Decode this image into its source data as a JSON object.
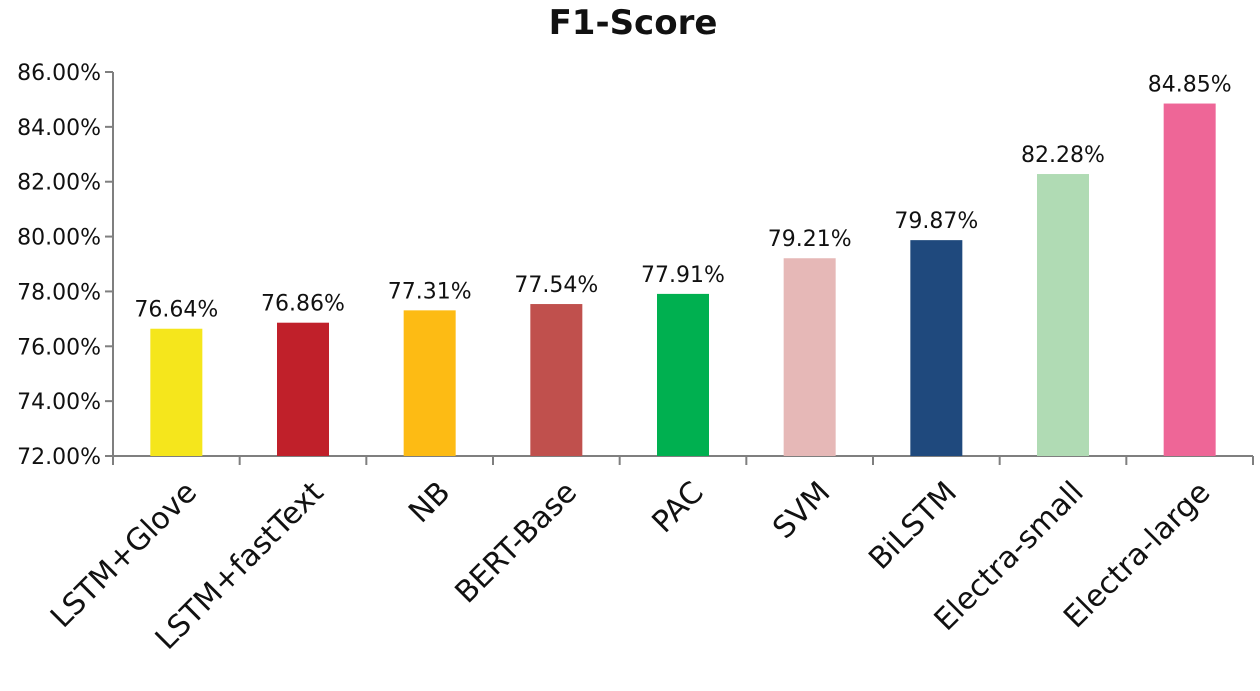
{
  "chart_data": {
    "type": "bar",
    "title": "F1-Score",
    "xlabel": "",
    "ylabel": "",
    "ylim": [
      72,
      86
    ],
    "ytick_step": 2,
    "ytick_labels": [
      "72.00%",
      "74.00%",
      "76.00%",
      "78.00%",
      "80.00%",
      "82.00%",
      "84.00%",
      "86.00%"
    ],
    "categories": [
      "LSTM+Glove",
      "LSTM+fastText",
      "NB",
      "BERT-Base",
      "PAC",
      "SVM",
      "BiLSTM",
      "Electra-small",
      "Electra-large"
    ],
    "values": [
      76.64,
      76.86,
      77.31,
      77.54,
      77.91,
      79.21,
      79.87,
      82.28,
      84.85
    ],
    "data_labels": [
      "76.64%",
      "76.86%",
      "77.31%",
      "77.54%",
      "77.91%",
      "79.21%",
      "79.87%",
      "82.28%",
      "84.85%"
    ],
    "colors": [
      "#f5e61c",
      "#c0202a",
      "#fdbb14",
      "#c0504d",
      "#00b050",
      "#e6b8b7",
      "#1f497d",
      "#b0dbb4",
      "#ee6697"
    ],
    "grid": false,
    "legend": "none"
  }
}
